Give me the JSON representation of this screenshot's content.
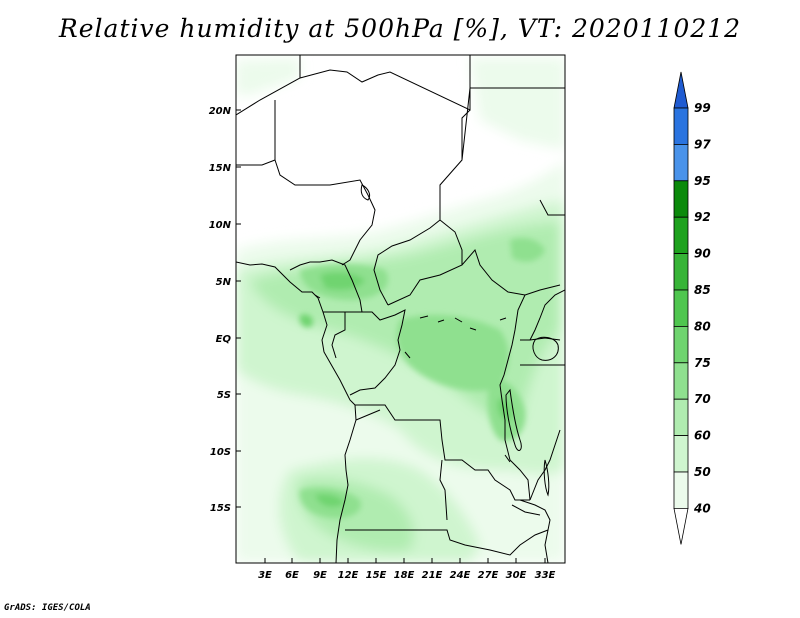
{
  "title": "Relative humidity at 500hPa [%], VT: 2020110212",
  "footer": "GrADS: IGES/COLA",
  "map": {
    "variable": "Relative humidity",
    "level": "500hPa",
    "units": "%",
    "valid_time": "2020110212",
    "lat_labels": [
      "20N",
      "15N",
      "10N",
      "5N",
      "EQ",
      "5S",
      "10S",
      "15S"
    ],
    "lon_labels": [
      "3E",
      "6E",
      "9E",
      "12E",
      "15E",
      "18E",
      "21E",
      "24E",
      "27E",
      "30E",
      "33E"
    ]
  },
  "colorbar": {
    "levels": [
      "99",
      "97",
      "95",
      "92",
      "90",
      "85",
      "80",
      "75",
      "70",
      "60",
      "50",
      "40"
    ],
    "colors": [
      "#1f5bd1",
      "#2a74e0",
      "#4a93ea",
      "#0b8a0b",
      "#1ea21e",
      "#37b437",
      "#4fc64f",
      "#6fd46f",
      "#8fe08f",
      "#b0ecb0",
      "#cff5cf",
      "#ecfbec",
      "#ffffff"
    ]
  },
  "shading_colors": {
    "c40": "#ecfbec",
    "c50": "#cff5cf",
    "c60": "#b0ecb0",
    "c70": "#8fe08f",
    "c75": "#6fd46f"
  }
}
